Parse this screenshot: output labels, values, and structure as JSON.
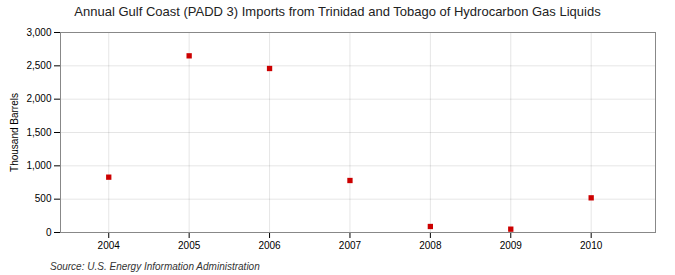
{
  "chart_data": {
    "type": "scatter",
    "title": "Annual Gulf Coast (PADD 3) Imports from Trinidad and Tobago of Hydrocarbon Gas Liquids",
    "ylabel": "Thousand Barrels",
    "source": "Source: U.S. Energy Information Administration",
    "x": [
      2004,
      2005,
      2006,
      2007,
      2008,
      2009,
      2010
    ],
    "values": [
      830,
      2650,
      2460,
      780,
      90,
      50,
      520
    ],
    "color": "#cc0000",
    "marker": "square",
    "xlim": [
      2003.4,
      2010.8
    ],
    "xticks": [
      2004,
      2005,
      2006,
      2007,
      2008,
      2009,
      2010
    ],
    "ylim": [
      0,
      3000
    ],
    "yticks": [
      0,
      500,
      {
        "value": 1000,
        "label": "1,000"
      },
      {
        "value": 1500,
        "label": "1,500"
      },
      {
        "value": 2000,
        "label": "2,000"
      },
      {
        "value": 2500,
        "label": "2,500"
      },
      {
        "value": 3000,
        "label": "3,000"
      }
    ],
    "grid": true
  }
}
